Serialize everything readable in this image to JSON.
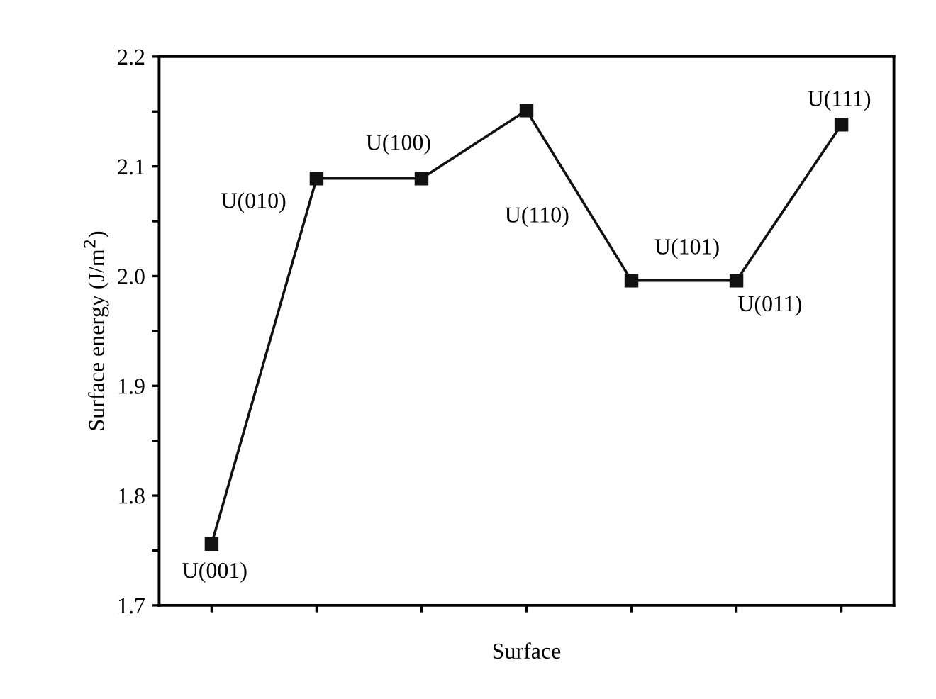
{
  "chart_data": {
    "type": "line",
    "xlabel": "Surface",
    "ylabel": "Surface energy (J/m$^{2}$)",
    "categories": [
      null,
      null,
      null,
      null,
      null,
      null,
      null
    ],
    "series": [
      {
        "color": "#111111",
        "values": [
          1.756,
          2.089,
          2.089,
          2.151,
          1.996,
          1.996,
          2.138
        ]
      }
    ],
    "marker": "square",
    "line_style": "solid",
    "grid": false,
    "legend": false,
    "ylim": [
      1.7,
      2.2
    ],
    "yticks": [
      1.7,
      {
        "value": 1.75,
        "label": null
      },
      1.8,
      {
        "value": 1.85,
        "label": null
      },
      1.9,
      {
        "value": 1.95,
        "label": null
      },
      {
        "value": 2.0,
        "label": "2.0"
      },
      {
        "value": 2.05,
        "label": null
      },
      2.1,
      {
        "value": 2.15,
        "label": null
      },
      2.2
    ],
    "annotations": [
      "U(001)",
      "U(010)",
      "U(100)",
      "U(110)",
      "U(101)",
      "U(011)",
      "U(111)"
    ]
  }
}
